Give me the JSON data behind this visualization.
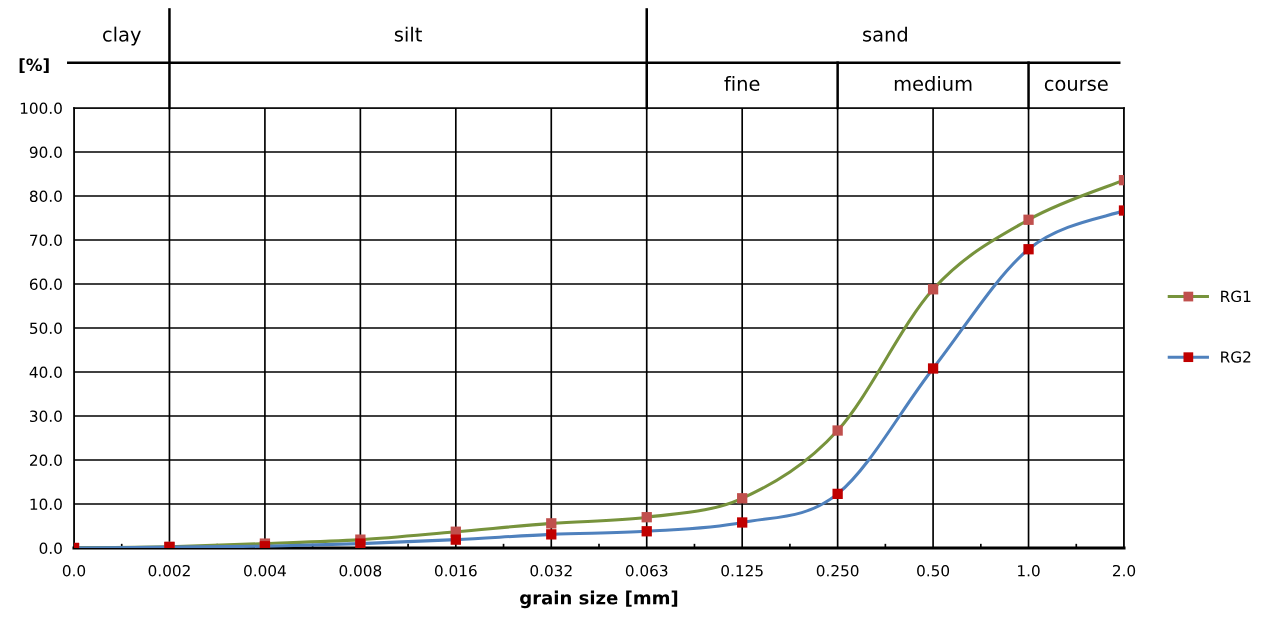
{
  "chart_data": {
    "type": "line",
    "xlabel": "grain size [mm]",
    "ylabel": "[%]",
    "categories": [
      "0.0",
      "0.002",
      "0.004",
      "0.008",
      "0.016",
      "0.032",
      "0.063",
      "0.125",
      "0.250",
      "0.50",
      "1.0",
      "2.0"
    ],
    "series": [
      {
        "name": "RG1",
        "color": "#77933c",
        "colors": [
          "#c0504d",
          "#c0504d",
          "#c0504d",
          "#c0504d",
          "#c0504d",
          "#c0504d",
          "#c0504d",
          "#c0504d",
          "#c0504d",
          "#c0504d",
          "#c0504d",
          "#c0504d"
        ],
        "values": [
          0.0,
          0.3,
          1.0,
          1.9,
          3.7,
          5.6,
          7.0,
          11.3,
          26.7,
          58.8,
          74.6,
          83.6
        ]
      },
      {
        "name": "RG2",
        "color": "#4f81bd",
        "colors": [
          "#c00000",
          "#c00000",
          "#c00000",
          "#c00000",
          "#c00000",
          "#c00000",
          "#c00000",
          "#c00000",
          "#c00000",
          "#c00000",
          "#c00000",
          "#c00000"
        ],
        "values": [
          0.0,
          0.2,
          0.4,
          1.0,
          1.9,
          3.1,
          3.8,
          5.8,
          12.3,
          40.8,
          67.9,
          76.7
        ]
      }
    ],
    "ylim": [
      0,
      100
    ],
    "yticks": [
      {
        "value": 0,
        "label": "0.0"
      },
      {
        "value": 10,
        "label": "10.0"
      },
      {
        "value": 20,
        "label": "20.0"
      },
      {
        "value": 30,
        "label": "30.0"
      },
      {
        "value": 40,
        "label": "40.0"
      },
      {
        "value": 50,
        "label": "50.0"
      },
      {
        "value": 60,
        "label": "60.0"
      },
      {
        "value": 70,
        "label": "70.0"
      },
      {
        "value": 80,
        "label": "80.0"
      },
      {
        "value": 90,
        "label": "90.0"
      },
      {
        "value": 100,
        "label": "100.0"
      }
    ],
    "annotations": [
      "clay",
      "silt",
      "sand",
      "fine",
      "medium",
      "course"
    ],
    "grid": true,
    "legend": "right",
    "marker": "square",
    "line_style": "solid"
  }
}
